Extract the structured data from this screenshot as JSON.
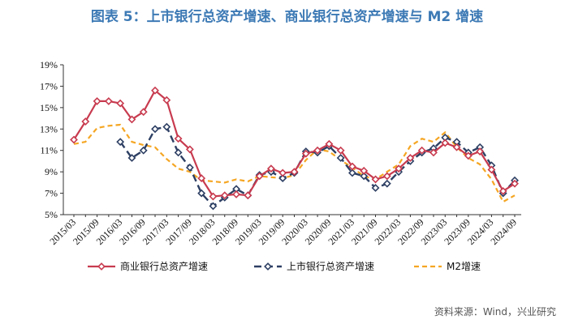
{
  "figure_title": "图表 5：上市银行总资产增速、商业银行总资产增速与 M2 增速",
  "source_note": "资料来源：Wind，兴业研究",
  "colors": {
    "title": "#3d7ab5",
    "commercial": "#c83b4f",
    "listed": "#2d3f63",
    "m2": "#f5a623"
  },
  "chart_data": {
    "type": "line",
    "title": "图表 5：上市银行总资产增速、商业银行总资产增速与 M2 增速",
    "xlabel": "",
    "ylabel": "",
    "ylim": [
      5,
      19
    ],
    "yticks": [
      "5%",
      "7%",
      "9%",
      "11%",
      "13%",
      "15%",
      "17%",
      "19%"
    ],
    "grid": false,
    "legend_position": "bottom",
    "x": [
      "2015/03",
      "2015/06",
      "2015/09",
      "2015/12",
      "2016/03",
      "2016/06",
      "2016/09",
      "2016/12",
      "2017/03",
      "2017/06",
      "2017/09",
      "2017/12",
      "2018/03",
      "2018/06",
      "2018/09",
      "2018/12",
      "2019/03",
      "2019/06",
      "2019/09",
      "2019/12",
      "2020/03",
      "2020/06",
      "2020/09",
      "2020/12",
      "2021/03",
      "2021/06",
      "2021/09",
      "2021/12",
      "2022/03",
      "2022/06",
      "2022/09",
      "2022/12",
      "2023/03",
      "2023/06",
      "2023/09",
      "2023/12",
      "2024/03",
      "2024/06",
      "2024/09"
    ],
    "xtick_labels": [
      "2015/03",
      "2015/09",
      "2016/03",
      "2016/09",
      "2017/03",
      "2017/09",
      "2018/03",
      "2018/09",
      "2019/03",
      "2019/09",
      "2020/03",
      "2020/09",
      "2021/03",
      "2021/09",
      "2022/03",
      "2022/09",
      "2023/03",
      "2023/09",
      "2024/03",
      "2024/09"
    ],
    "series": [
      {
        "name": "商业银行总资产增速",
        "style": "solid-diamond",
        "color": "#c83b4f",
        "values": [
          12.0,
          13.7,
          15.6,
          15.6,
          15.4,
          13.9,
          14.6,
          16.6,
          15.7,
          12.1,
          11.1,
          8.4,
          6.7,
          6.8,
          6.9,
          6.8,
          8.6,
          9.3,
          8.9,
          9.0,
          10.7,
          11.0,
          11.6,
          11.0,
          9.5,
          9.1,
          8.3,
          8.6,
          9.3,
          10.3,
          11.0,
          10.8,
          11.7,
          11.3,
          10.5,
          10.9,
          9.2,
          7.2,
          7.9
        ]
      },
      {
        "name": "上市银行总资产增速",
        "style": "dashed-diamond",
        "color": "#2d3f63",
        "values": [
          null,
          null,
          null,
          null,
          11.8,
          10.3,
          11.0,
          13.0,
          13.2,
          10.8,
          9.4,
          7.0,
          5.8,
          6.6,
          7.4,
          6.8,
          8.7,
          9.0,
          8.4,
          8.9,
          10.9,
          10.8,
          11.4,
          10.3,
          8.9,
          8.6,
          7.5,
          7.9,
          9.0,
          10.0,
          10.8,
          11.2,
          12.2,
          11.8,
          10.8,
          11.3,
          9.6,
          7.0,
          8.2
        ]
      },
      {
        "name": "M2增速",
        "style": "dashed",
        "color": "#f5a623",
        "values": [
          11.6,
          11.8,
          13.1,
          13.3,
          13.4,
          11.8,
          11.5,
          11.3,
          10.2,
          9.3,
          9.0,
          8.2,
          8.1,
          8.0,
          8.3,
          8.1,
          8.6,
          8.5,
          8.4,
          8.7,
          10.1,
          11.1,
          10.9,
          10.1,
          9.4,
          8.6,
          8.3,
          9.0,
          9.7,
          11.4,
          12.1,
          11.8,
          12.7,
          11.3,
          10.3,
          9.7,
          8.3,
          6.2,
          6.8
        ]
      }
    ]
  }
}
